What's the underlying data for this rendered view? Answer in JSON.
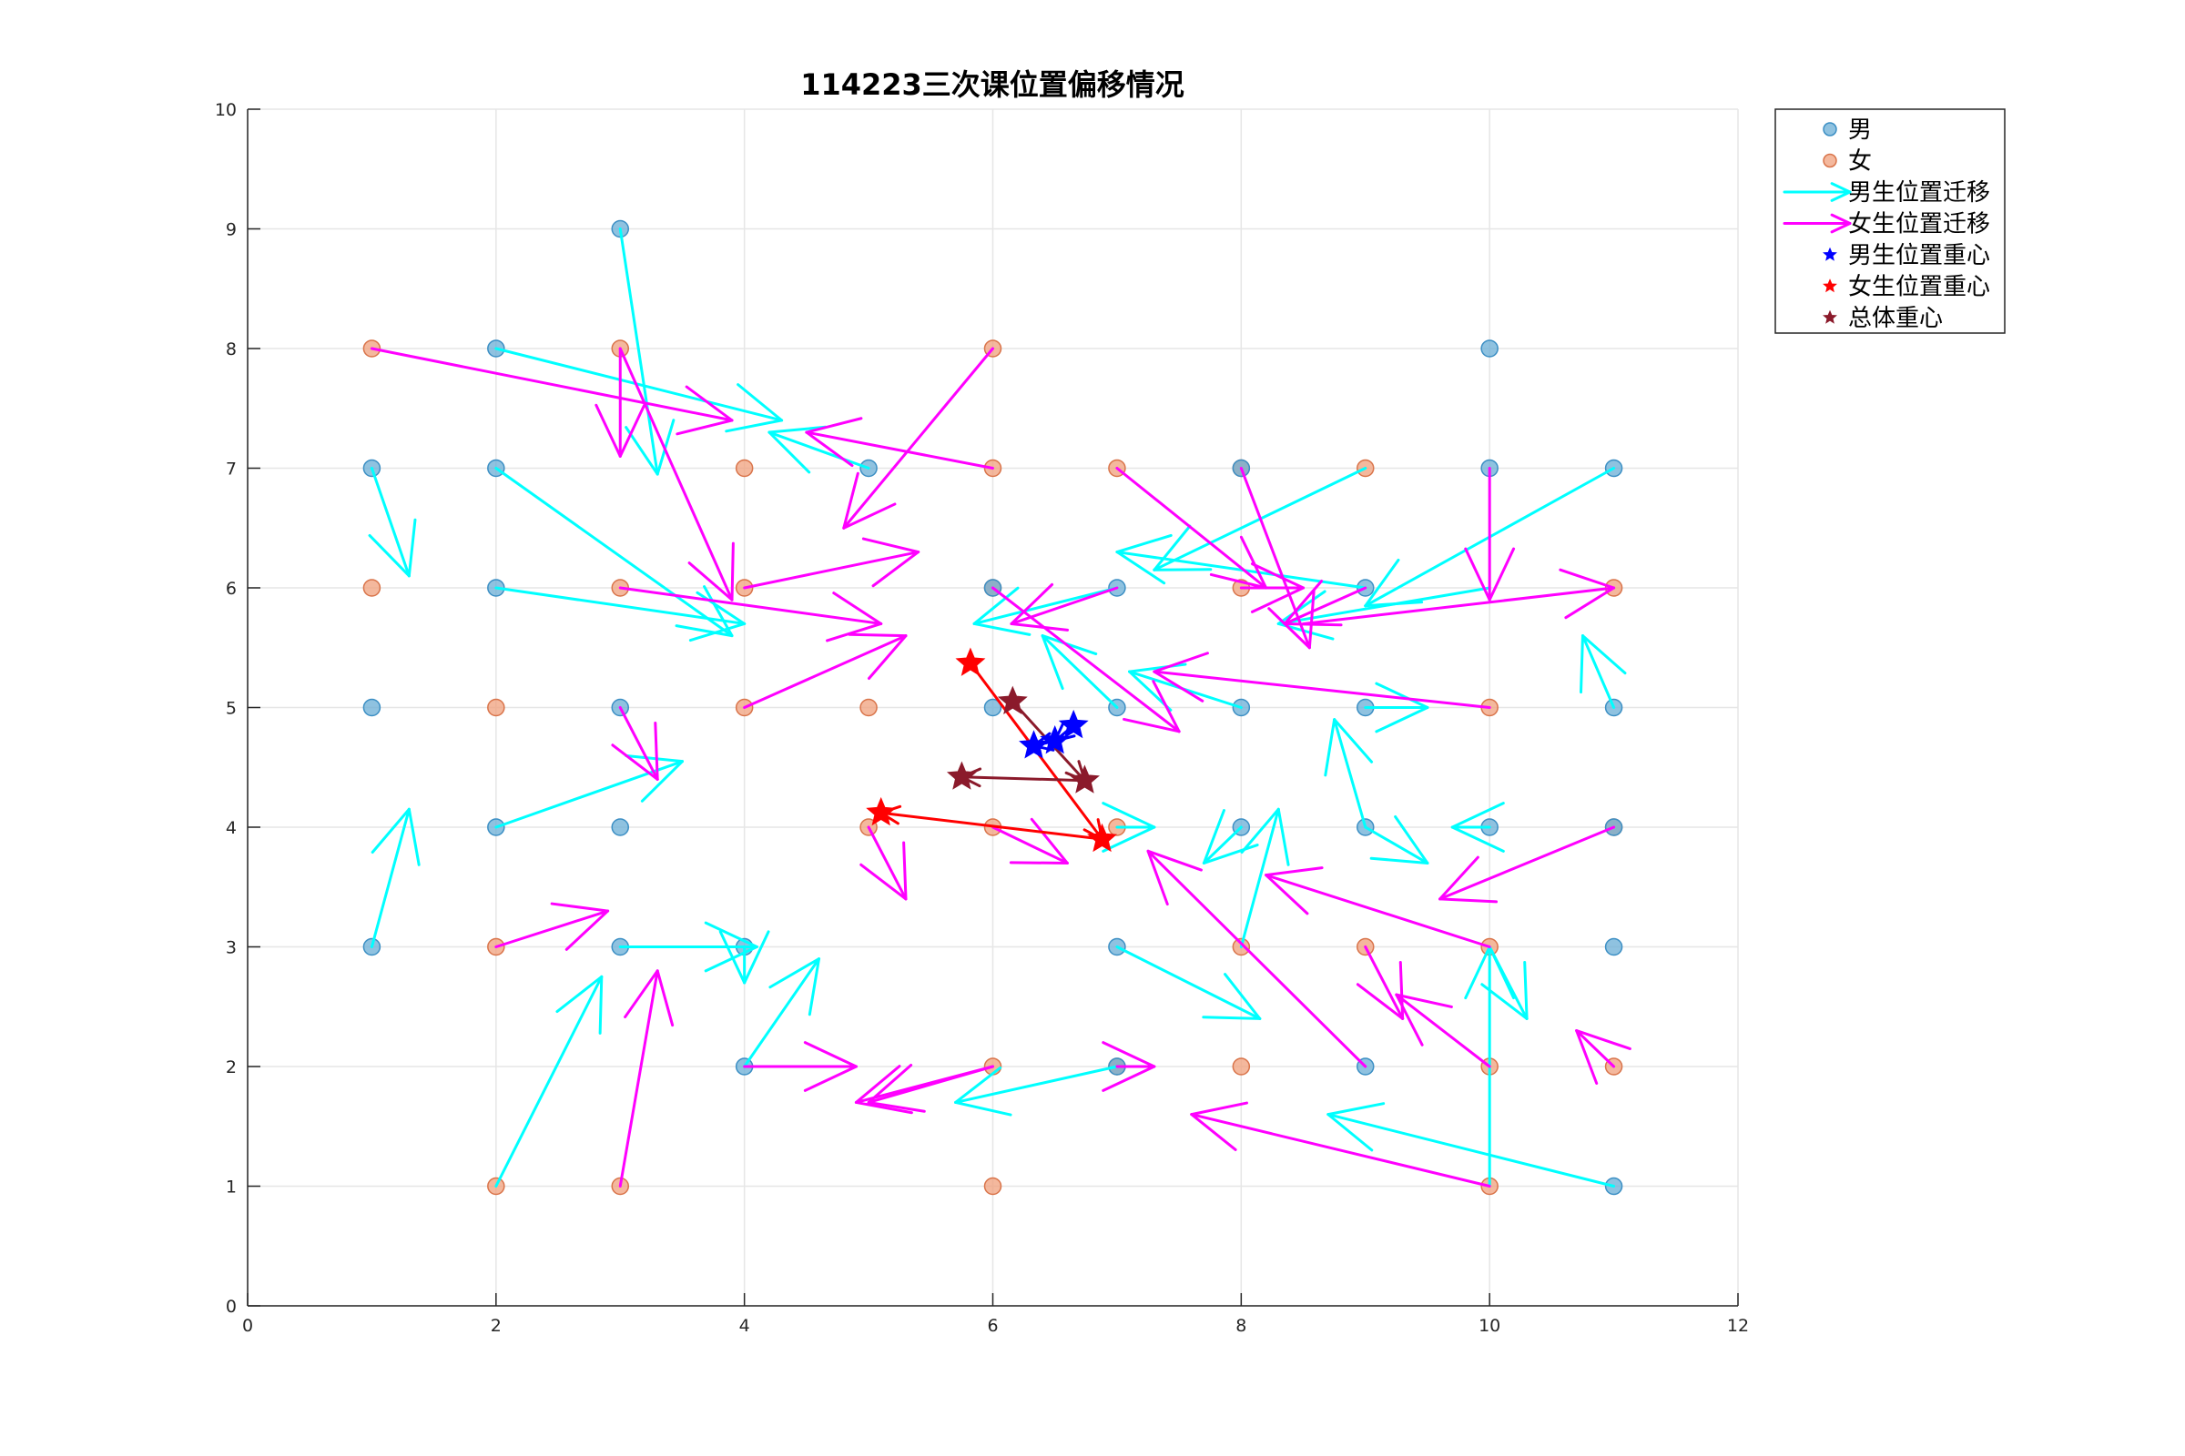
{
  "chart_data": {
    "type": "scatter",
    "title": "114223三次课位置偏移情况",
    "xlim": [
      0,
      12
    ],
    "ylim": [
      0,
      10
    ],
    "xticks": [
      "0",
      "2",
      "4",
      "6",
      "8",
      "10",
      "12"
    ],
    "yticks": [
      "0",
      "1",
      "2",
      "3",
      "4",
      "5",
      "6",
      "7",
      "8",
      "9",
      "10"
    ],
    "grid": true,
    "legend_position": "outside-top-right",
    "colors": {
      "male": "#6aaed6",
      "female": "#f0a07c",
      "male_arrow": "#00ffff",
      "female_arrow": "#ff00ff",
      "male_centroid": "#0000ff",
      "female_centroid": "#ff0000",
      "overall_centroid": "#8b1a2b"
    },
    "legend": [
      {
        "label": "男",
        "kind": "male"
      },
      {
        "label": "女",
        "kind": "female"
      },
      {
        "label": "男生位置迁移",
        "kind": "male_arrow"
      },
      {
        "label": "女生位置迁移",
        "kind": "female_arrow"
      },
      {
        "label": "男生位置重心",
        "kind": "male_centroid"
      },
      {
        "label": "女生位置重心",
        "kind": "female_centroid"
      },
      {
        "label": "总体重心",
        "kind": "overall_centroid"
      }
    ],
    "male_points": [
      [
        1,
        7
      ],
      [
        1,
        5
      ],
      [
        1,
        3
      ],
      [
        2,
        8
      ],
      [
        2,
        7
      ],
      [
        2,
        6
      ],
      [
        2,
        4
      ],
      [
        3,
        9
      ],
      [
        3,
        5
      ],
      [
        3,
        4
      ],
      [
        3,
        3
      ],
      [
        4,
        3
      ],
      [
        4,
        2
      ],
      [
        5,
        7
      ],
      [
        6,
        6
      ],
      [
        6,
        5
      ],
      [
        7,
        6
      ],
      [
        7,
        5
      ],
      [
        7,
        3
      ],
      [
        7,
        2
      ],
      [
        8,
        7
      ],
      [
        8,
        5
      ],
      [
        8,
        4
      ],
      [
        9,
        6
      ],
      [
        9,
        5
      ],
      [
        9,
        4
      ],
      [
        9,
        2
      ],
      [
        10,
        8
      ],
      [
        10,
        7
      ],
      [
        10,
        4
      ],
      [
        11,
        7
      ],
      [
        11,
        5
      ],
      [
        11,
        4
      ],
      [
        11,
        3
      ],
      [
        11,
        1
      ]
    ],
    "female_points": [
      [
        1,
        8
      ],
      [
        1,
        6
      ],
      [
        2,
        5
      ],
      [
        2,
        3
      ],
      [
        2,
        1
      ],
      [
        3,
        8
      ],
      [
        3,
        6
      ],
      [
        3,
        1
      ],
      [
        4,
        7
      ],
      [
        4,
        6
      ],
      [
        4,
        5
      ],
      [
        5,
        5
      ],
      [
        5,
        4
      ],
      [
        6,
        8
      ],
      [
        6,
        7
      ],
      [
        6,
        6
      ],
      [
        6,
        4
      ],
      [
        6,
        2
      ],
      [
        6,
        1
      ],
      [
        7,
        7
      ],
      [
        7,
        4
      ],
      [
        7,
        2
      ],
      [
        8,
        7
      ],
      [
        8,
        6
      ],
      [
        8,
        3
      ],
      [
        8,
        2
      ],
      [
        9,
        7
      ],
      [
        9,
        3
      ],
      [
        10,
        5
      ],
      [
        10,
        3
      ],
      [
        10,
        2
      ],
      [
        10,
        1
      ],
      [
        11,
        6
      ],
      [
        11,
        4
      ],
      [
        11,
        2
      ]
    ],
    "male_arrows": [
      [
        1,
        7,
        1.3,
        6.1
      ],
      [
        1,
        3,
        1.3,
        4.15
      ],
      [
        2,
        8,
        4.3,
        7.4
      ],
      [
        2,
        7,
        3.9,
        5.6
      ],
      [
        2,
        6,
        4.0,
        5.7
      ],
      [
        2,
        4,
        3.5,
        4.55
      ],
      [
        3,
        9,
        3.3,
        6.95
      ],
      [
        3,
        3,
        4.1,
        3.0
      ],
      [
        4,
        3,
        4.0,
        2.7
      ],
      [
        4,
        2,
        4.6,
        2.9
      ],
      [
        5,
        7,
        4.2,
        7.3
      ],
      [
        2,
        1,
        2.85,
        2.75
      ],
      [
        7,
        6,
        5.85,
        5.7
      ],
      [
        7,
        5,
        6.4,
        5.6
      ],
      [
        7,
        4,
        7.3,
        4.0
      ],
      [
        7,
        3,
        8.15,
        2.4
      ],
      [
        7,
        2,
        5.7,
        1.7
      ],
      [
        8,
        5,
        7.1,
        5.3
      ],
      [
        8,
        4,
        7.7,
        3.7
      ],
      [
        8,
        3,
        8.3,
        4.15
      ],
      [
        9,
        7,
        7.3,
        6.15
      ],
      [
        9,
        6,
        7.0,
        6.3
      ],
      [
        9,
        5,
        9.5,
        5.0
      ],
      [
        9,
        4,
        9.5,
        3.7
      ],
      [
        9,
        4,
        8.75,
        4.9
      ],
      [
        11,
        7,
        9.0,
        5.85
      ],
      [
        10,
        6,
        8.3,
        5.7
      ],
      [
        10,
        4,
        9.7,
        4.0
      ],
      [
        10,
        1,
        10.0,
        3.0
      ],
      [
        10,
        3,
        10.3,
        2.4
      ],
      [
        11,
        1,
        8.7,
        1.6
      ],
      [
        11,
        5,
        10.75,
        5.6
      ]
    ],
    "female_arrows": [
      [
        1,
        8,
        3.9,
        7.4
      ],
      [
        3,
        8,
        3.0,
        7.1
      ],
      [
        3,
        8,
        3.9,
        5.9
      ],
      [
        3,
        6,
        5.1,
        5.7
      ],
      [
        4,
        6,
        5.4,
        6.3
      ],
      [
        4,
        5,
        5.3,
        5.6
      ],
      [
        3,
        5,
        3.3,
        4.4
      ],
      [
        2,
        3,
        2.9,
        3.3
      ],
      [
        3,
        1,
        3.3,
        2.8
      ],
      [
        4,
        2,
        4.9,
        2.0
      ],
      [
        6,
        2,
        4.9,
        1.7
      ],
      [
        6,
        2,
        5.0,
        1.7
      ],
      [
        6,
        8,
        4.8,
        6.5
      ],
      [
        6,
        7,
        4.5,
        7.3
      ],
      [
        5,
        4,
        5.3,
        3.4
      ],
      [
        6,
        4,
        6.6,
        3.7
      ],
      [
        6,
        6,
        7.5,
        4.8
      ],
      [
        7,
        2,
        7.3,
        2.0
      ],
      [
        7,
        7,
        8.2,
        6.0
      ],
      [
        7,
        6,
        6.15,
        5.7
      ],
      [
        8,
        7,
        8.55,
        5.5
      ],
      [
        8,
        6,
        8.5,
        6.0
      ],
      [
        9,
        6,
        8.35,
        5.7
      ],
      [
        8.5,
        5.7,
        11,
        6
      ],
      [
        10,
        5,
        7.3,
        5.3
      ],
      [
        10,
        7,
        10.0,
        5.9
      ],
      [
        11,
        4,
        9.6,
        3.4
      ],
      [
        10,
        3,
        8.2,
        3.6
      ],
      [
        9,
        2,
        7.25,
        3.8
      ],
      [
        9,
        3,
        9.3,
        2.4
      ],
      [
        10,
        2,
        9.25,
        2.6
      ],
      [
        10,
        1,
        7.6,
        1.6
      ],
      [
        11,
        2,
        10.7,
        2.3
      ]
    ],
    "male_centroid": [
      [
        6.65,
        4.85
      ],
      [
        6.5,
        4.72
      ],
      [
        6.33,
        4.68
      ]
    ],
    "female_centroid": [
      [
        5.82,
        5.37
      ],
      [
        6.88,
        3.9
      ],
      [
        5.1,
        4.12
      ]
    ],
    "overall_centroid": [
      [
        6.16,
        5.05
      ],
      [
        6.74,
        4.39
      ],
      [
        5.75,
        4.42
      ]
    ]
  }
}
